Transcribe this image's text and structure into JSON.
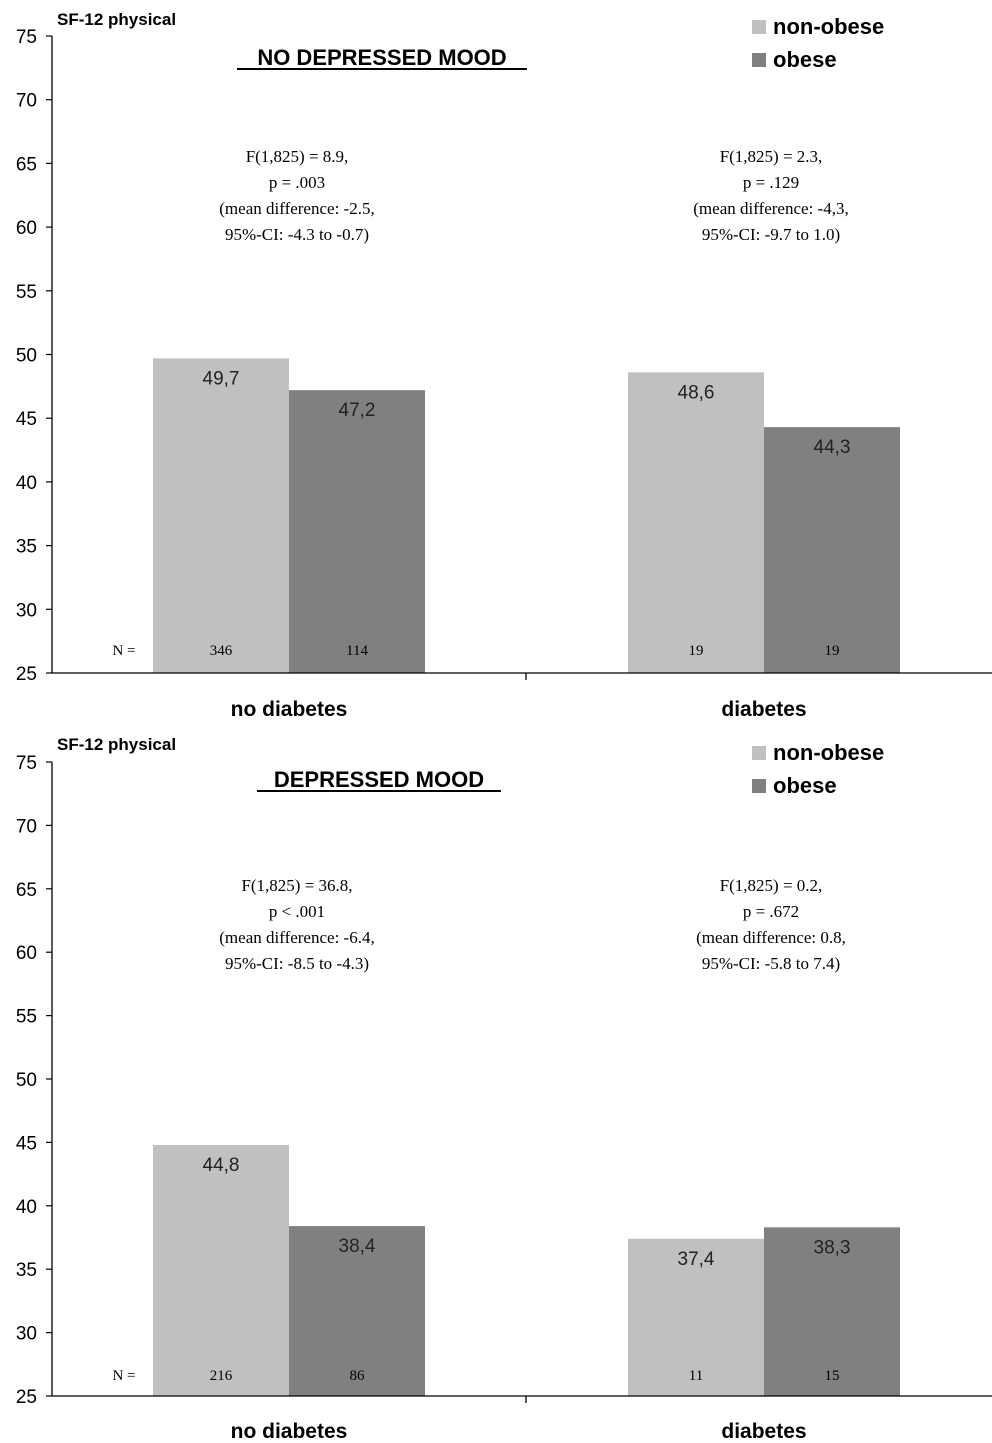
{
  "chart_data": [
    {
      "type": "bar",
      "title": "NO DEPRESSED MOOD",
      "ylabel": "SF-12 physical",
      "ylim": [
        25,
        75
      ],
      "yticks": [
        25,
        30,
        35,
        40,
        45,
        50,
        55,
        60,
        65,
        70,
        75
      ],
      "categories": [
        "no diabetes",
        "diabetes"
      ],
      "series": [
        {
          "name": "non-obese",
          "color": "#c0c0c0",
          "values": [
            49.7,
            48.6
          ],
          "labels": [
            "49,7",
            "48,6"
          ],
          "n": [
            "346",
            "19"
          ]
        },
        {
          "name": "obese",
          "color": "#808080",
          "values": [
            47.2,
            44.3
          ],
          "labels": [
            "47,2",
            "44,3"
          ],
          "n": [
            "114",
            "19"
          ]
        }
      ],
      "n_label": "N =",
      "stats": [
        [
          "F(1,825) = 8.9,",
          "p = .003",
          "(mean difference: -2.5,",
          "95%-CI: -4.3 to -0.7)"
        ],
        [
          "F(1,825) = 2.3,",
          "p = .129",
          "(mean difference: -4,3,",
          "95%-CI: -9.7 to 1.0)"
        ]
      ],
      "legend_position": "top-right",
      "grid": false
    },
    {
      "type": "bar",
      "title": "DEPRESSED MOOD",
      "ylabel": "SF-12 physical",
      "ylim": [
        25,
        75
      ],
      "yticks": [
        25,
        30,
        35,
        40,
        45,
        50,
        55,
        60,
        65,
        70,
        75
      ],
      "categories": [
        "no diabetes",
        "diabetes"
      ],
      "series": [
        {
          "name": "non-obese",
          "color": "#c0c0c0",
          "values": [
            44.8,
            37.4
          ],
          "labels": [
            "44,8",
            "37,4"
          ],
          "n": [
            "216",
            "11"
          ]
        },
        {
          "name": "obese",
          "color": "#808080",
          "values": [
            38.4,
            38.3
          ],
          "labels": [
            "38,4",
            "38,3"
          ],
          "n": [
            "86",
            "15"
          ]
        }
      ],
      "n_label": "N =",
      "stats": [
        [
          "F(1,825) = 36.8,",
          "p < .001",
          "(mean difference: -6.4,",
          "95%-CI: -8.5 to -4.3)"
        ],
        [
          "F(1,825) = 0.2,",
          "p = .672",
          "(mean difference: 0.8,",
          "95%-CI: -5.8 to 7.4)"
        ]
      ],
      "legend_position": "top-right",
      "grid": false
    }
  ]
}
